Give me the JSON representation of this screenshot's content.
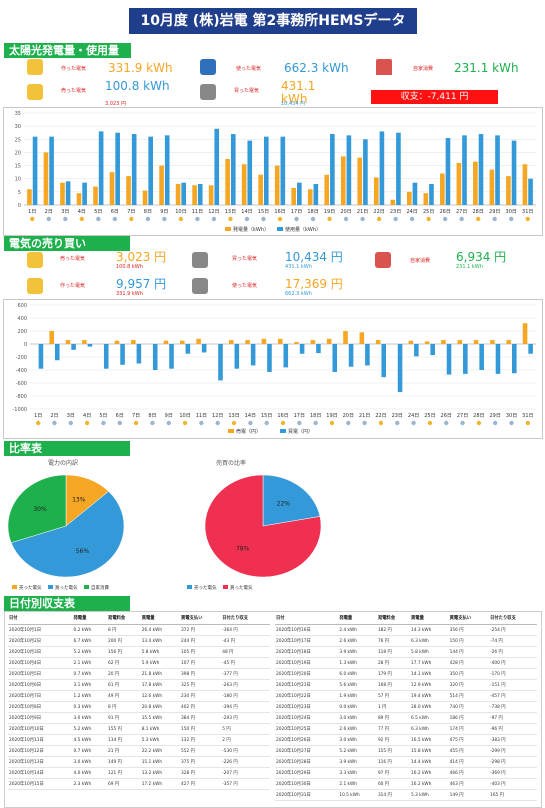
{
  "title": "10月度 (株)岩電 第2事務所HEMSデータ",
  "solar": {
    "heading": "太陽光発電量・使用量",
    "generated_label": "作った電気",
    "generated_value": "331.9 kWh",
    "used_label": "使った電気",
    "used_value": "662.3 kWh",
    "self_label": "自家消費",
    "self_value": "231.1 kWh",
    "sold_label": "売った電気",
    "sold_value": "100.8 kWh",
    "sold_yen": "3,023 円",
    "bought_label": "買った電気",
    "bought_value": "431.1 kWh",
    "bought_yen": "10,434 円",
    "balance": "収支：-7,411 円"
  },
  "money": {
    "heading": "電気の売り買い",
    "sold_label": "売った電気",
    "sold_value": "3,023 円",
    "sold_kwh": "100.8 kWh",
    "bought_label": "買った電気",
    "bought_value": "10,434 円",
    "bought_kwh": "431.1 kWh",
    "self_label": "自家消費",
    "self_value": "6,934 円",
    "self_kwh": "231.1 kWh",
    "made_label": "作った電気",
    "made_value": "9,957 円",
    "made_kwh": "331.9 kWh",
    "used_label": "使った電気",
    "used_value": "17,369 円",
    "used_kwh": "662.3 kWh"
  },
  "ratio": {
    "heading": "比率表",
    "pie1_title": "電力の内訳",
    "pie2_title": "売買の比率"
  },
  "daily": {
    "heading": "日付別収支表",
    "headers": [
      "日付",
      "発電量",
      "発電料金",
      "買電量",
      "買電支払い",
      "日付たり収支"
    ],
    "rows_left": [
      [
        "2020年10月1日",
        "0.2 kWh",
        "8 円",
        "26.4 kWh",
        "372 円",
        "-364 円"
      ],
      [
        "2020年10月2日",
        "6.7 kWh",
        "200 円",
        "13.4 kWh",
        "244 円",
        "-43 円"
      ],
      [
        "2020年10月3日",
        "5.2 kWh",
        "156 円",
        "5.8 kWh",
        "105 円",
        "48 円"
      ],
      [
        "2020年10月4日",
        "2.1 kWh",
        "62 円",
        "5.9 kWh",
        "107 円",
        "-45 円"
      ],
      [
        "2020年10月5日",
        "0.7 kWh",
        "20 円",
        "21.8 kWh",
        "398 円",
        "-377 円"
      ],
      [
        "2020年10月6日",
        "3.1 kWh",
        "61 円",
        "17.8 kWh",
        "325 円",
        "-263 円"
      ],
      [
        "2020年10月7日",
        "1.2 kWh",
        "49 円",
        "12.6 kWh",
        "230 円",
        "-180 円"
      ],
      [
        "2020年10月8日",
        "0.3 kWh",
        "8 円",
        "20.8 kWh",
        "402 円",
        "-394 円"
      ],
      [
        "2020年10月9日",
        "3.0 kWh",
        "91 円",
        "15.5 kWh",
        "384 円",
        "-293 円"
      ],
      [
        "2020年10月10日",
        "5.2 kWh",
        "155 円",
        "8.1 kWh",
        "150 円",
        "5 円"
      ],
      [
        "2020年10月11日",
        "4.5 kWh",
        "134 円",
        "5.3 kWh",
        "132 円",
        "2 円"
      ],
      [
        "2020年10月12日",
        "0.7 kWh",
        "21 円",
        "22.2 kWh",
        "552 円",
        "-530 円"
      ],
      [
        "2020年10月13日",
        "3.0 kWh",
        "149 円",
        "15.1 kWh",
        "375 円",
        "-226 円"
      ],
      [
        "2020年10月14日",
        "4.0 kWh",
        "121 円",
        "13.2 kWh",
        "328 円",
        "-207 円"
      ],
      [
        "2020年10月15日",
        "2.3 kWh",
        "69 円",
        "17.2 kWh",
        "427 円",
        "-357 円"
      ]
    ],
    "rows_right": [
      [
        "2020年10月16日",
        "2.4 kWh",
        "182 円",
        "14.3 kWh",
        "356 円",
        "-254 円"
      ],
      [
        "2020年10月17日",
        "2.6 kWh",
        "76 円",
        "6.3 kWh",
        "150 円",
        "-74 円"
      ],
      [
        "2020年10月18日",
        "3.9 kWh",
        "118 円",
        "5.8 kWh",
        "144 円",
        "-26 円"
      ],
      [
        "2020年10月19日",
        "1.3 kWh",
        "28 円",
        "17.7 kWh",
        "428 円",
        "-400 円"
      ],
      [
        "2020年10月20日",
        "6.0 kWh",
        "179 円",
        "14.1 kWh",
        "350 円",
        "-170 円"
      ],
      [
        "2020年10月21日",
        "5.6 kWh",
        "168 円",
        "12.9 kWh",
        "320 円",
        "-151 円"
      ],
      [
        "2020年10月22日",
        "1.9 kWh",
        "57 円",
        "19.4 kWh",
        "514 円",
        "-457 円"
      ],
      [
        "2020年10月23日",
        "0.0 kWh",
        "1 円",
        "28.0 kWh",
        "740 円",
        "-738 円"
      ],
      [
        "2020年10月24日",
        "3.0 kWh",
        "89 円",
        "6.5 kWh",
        "186 円",
        "-97 円"
      ],
      [
        "2020年10月25日",
        "2.6 kWh",
        "77 円",
        "6.3 kWh",
        "174 円",
        "-96 円"
      ],
      [
        "2020年10月26日",
        "3.0 kWh",
        "92 円",
        "16.5 kWh",
        "475 円",
        "-383 円"
      ],
      [
        "2020年10月27日",
        "5.2 kWh",
        "155 円",
        "15.8 kWh",
        "455 円",
        "-299 円"
      ],
      [
        "2020年10月28日",
        "3.9 kWh",
        "116 円",
        "14.4 kWh",
        "414 円",
        "-298 円"
      ],
      [
        "2020年10月29日",
        "3.3 kWh",
        "97 円",
        "16.2 kWh",
        "466 円",
        "-369 円"
      ],
      [
        "2020年10月30日",
        "2.1 kWh",
        "60 円",
        "16.2 kWh",
        "463 円",
        "-403 円"
      ],
      [
        "2020年10月31日",
        "10.5 kWh",
        "314 円",
        "5.3 kWh",
        "149 円",
        "165 円"
      ]
    ]
  },
  "chart_data": [
    {
      "type": "bar",
      "categories": [
        "1日",
        "2日",
        "3日",
        "4日",
        "5日",
        "6日",
        "7日",
        "8日",
        "9日",
        "10日",
        "11日",
        "12日",
        "13日",
        "14日",
        "15日",
        "16日",
        "17日",
        "18日",
        "19日",
        "20日",
        "21日",
        "22日",
        "23日",
        "24日",
        "25日",
        "26日",
        "27日",
        "28日",
        "29日",
        "30日",
        "31日"
      ],
      "series": [
        {
          "name": "発電量（kWh）",
          "color": "#f5a623",
          "values": [
            6,
            20,
            8.5,
            4.5,
            7,
            12.5,
            11,
            5.5,
            15,
            8,
            7.5,
            7.5,
            17.5,
            15.5,
            11.5,
            15,
            6.5,
            6,
            11.5,
            18.5,
            18,
            10.5,
            2,
            5,
            4.5,
            12,
            16,
            16.5,
            13.5,
            11,
            15.5
          ]
        },
        {
          "name": "使用量（kWh）",
          "color": "#3399d8",
          "values": [
            26,
            26,
            9,
            8.5,
            28,
            27.5,
            27,
            26,
            26.5,
            8.5,
            8,
            29,
            27,
            24.5,
            26,
            26,
            8.5,
            8,
            27,
            26.5,
            25,
            28,
            27.5,
            8.5,
            8,
            25.5,
            26.5,
            27,
            26.5,
            24.5,
            10
          ]
        }
      ],
      "ylim": [
        0,
        35
      ],
      "yticks": [
        0,
        5,
        10,
        15,
        20,
        25,
        30,
        35
      ]
    },
    {
      "type": "bar",
      "categories": [
        "1日",
        "2日",
        "3日",
        "4日",
        "5日",
        "6日",
        "7日",
        "8日",
        "9日",
        "10日",
        "11日",
        "12日",
        "13日",
        "14日",
        "15日",
        "16日",
        "17日",
        "18日",
        "19日",
        "20日",
        "21日",
        "22日",
        "23日",
        "24日",
        "25日",
        "26日",
        "27日",
        "28日",
        "29日",
        "30日",
        "31日"
      ],
      "series": [
        {
          "name": "売電（円）",
          "color": "#f5a623",
          "values": [
            0,
            200,
            60,
            60,
            0,
            50,
            60,
            0,
            50,
            50,
            80,
            0,
            60,
            60,
            80,
            80,
            30,
            60,
            80,
            200,
            180,
            60,
            0,
            50,
            40,
            60,
            60,
            60,
            60,
            60,
            320
          ]
        },
        {
          "name": "買電（円）",
          "color": "#3399d8",
          "values": [
            -380,
            -250,
            -90,
            -40,
            -380,
            -320,
            -300,
            -400,
            -380,
            -150,
            -130,
            -560,
            -380,
            -330,
            -430,
            -360,
            -150,
            -140,
            -430,
            -350,
            -330,
            -510,
            -740,
            -190,
            -170,
            -470,
            -460,
            -400,
            -460,
            -450,
            -150
          ]
        }
      ],
      "ylim": [
        -1000,
        600
      ],
      "yticks": [
        600,
        400,
        200,
        0,
        -200,
        -400,
        -600,
        -800,
        -1000
      ]
    },
    {
      "type": "pie",
      "title": "電力の内訳",
      "labels": [
        "売った電気",
        "買った電気",
        "自家消費"
      ],
      "values": [
        13,
        56,
        30
      ],
      "colors": [
        "#f5a623",
        "#3399d8",
        "#1db04c"
      ]
    },
    {
      "type": "pie",
      "title": "売買の比率",
      "labels": [
        "売った電気",
        "買った電気"
      ],
      "values": [
        22,
        78
      ],
      "colors": [
        "#3399d8",
        "#f03050"
      ]
    }
  ]
}
